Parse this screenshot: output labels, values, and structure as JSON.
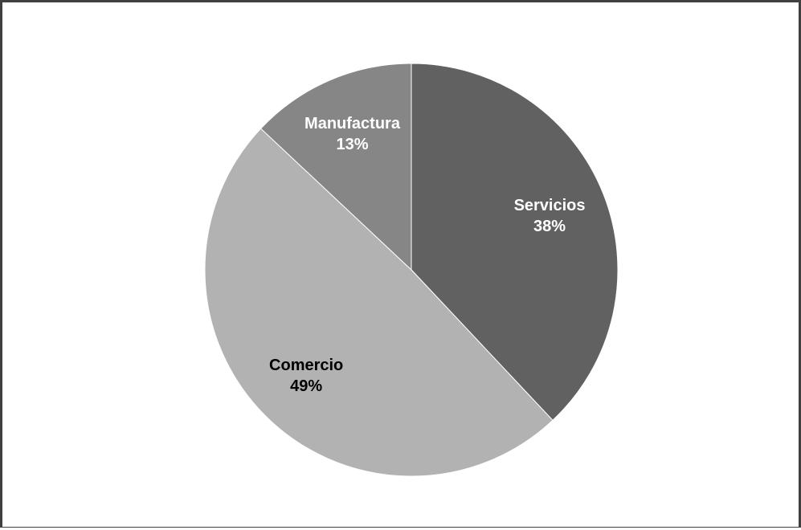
{
  "chart_data": {
    "type": "pie",
    "title": "",
    "start_angle_deg": 0,
    "direction": "clockwise",
    "slices": [
      {
        "label": "Servicios",
        "value": 38,
        "value_label": "38%",
        "color": "#616161",
        "label_color": "#ffffff"
      },
      {
        "label": "Comercio",
        "value": 49,
        "value_label": "49%",
        "color": "#b2b2b2",
        "label_color": "#000000"
      },
      {
        "label": "Manufactura",
        "value": 13,
        "value_label": "13%",
        "color": "#868686",
        "label_color": "#ffffff"
      }
    ]
  }
}
